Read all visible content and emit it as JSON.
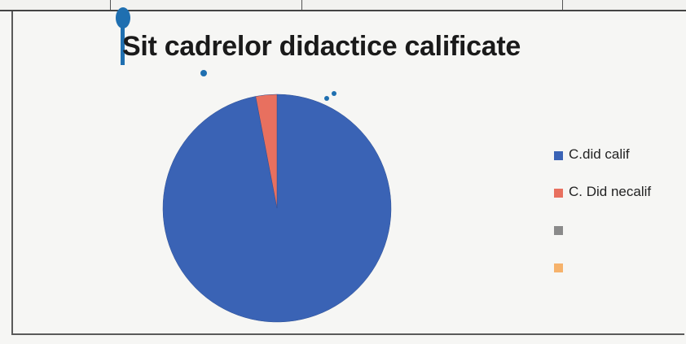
{
  "chart_data": {
    "type": "pie",
    "title": "Sit cadrelor didactice calificate",
    "categories": [
      "C.did calif",
      "C. Did necalif",
      "",
      ""
    ],
    "values": [
      97,
      3,
      0,
      0
    ],
    "colors": [
      "#3a63b5",
      "#e8705f",
      "#8a8a8a",
      "#f6b26b"
    ],
    "legend_position": "right"
  }
}
